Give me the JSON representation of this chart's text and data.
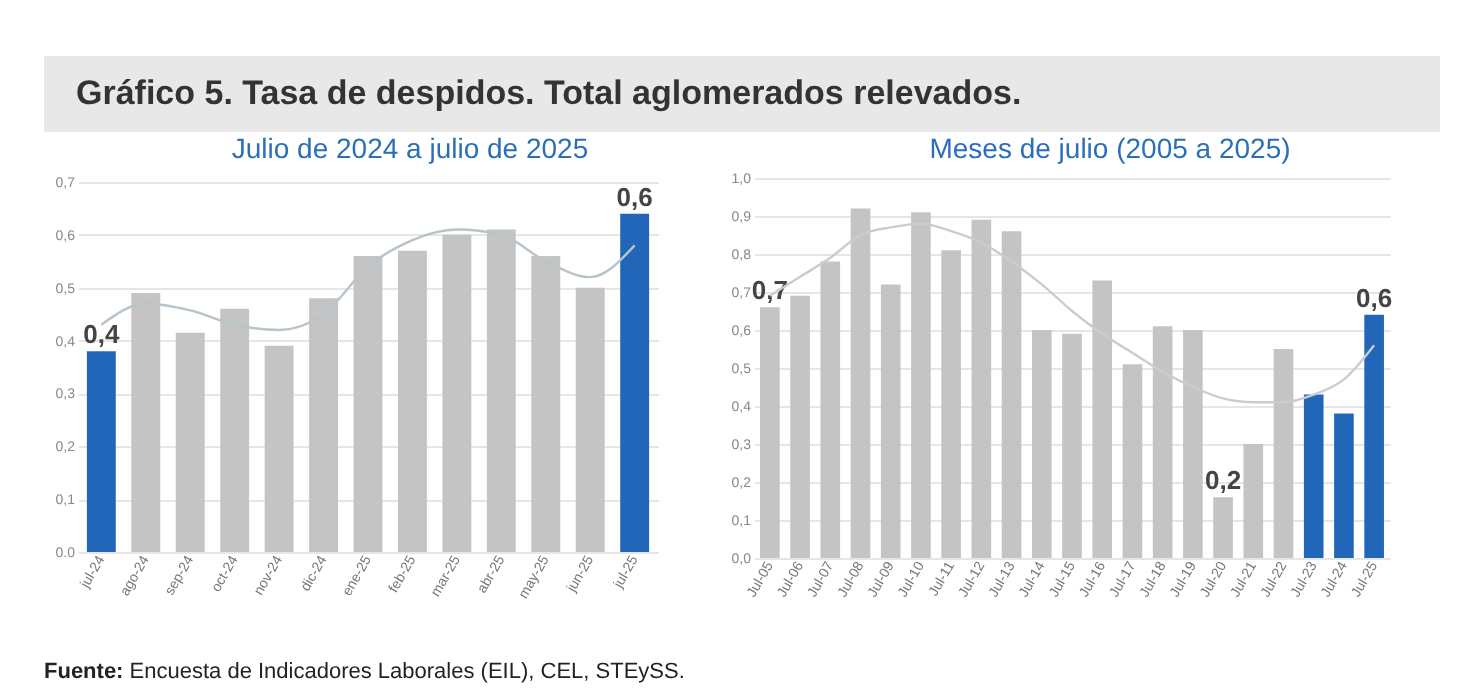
{
  "chart_data": [
    {
      "type": "bar",
      "title": "Julio de 2024 a julio de 2025",
      "annotations": [
        "Gráfico 5. Tasa de despidos. Total aglomerados relevados.",
        "Fuente: Encuesta de Indicadores Laborales (EIL), CEL, STEySS."
      ],
      "categories": [
        "jul-24",
        "ago-24",
        "sep-24",
        "oct-24",
        "nov-24",
        "dic-24",
        "ene-25",
        "feb-25",
        "mar-25",
        "abr-25",
        "may-25",
        "jun-25",
        "jul-25"
      ],
      "series": [
        {
          "colors": [
            "#2166b8",
            "#c4c4c4",
            "#c4c4c4",
            "#c4c4c4",
            "#c4c4c4",
            "#c4c4c4",
            "#c4c4c4",
            "#c4c4c4",
            "#c4c4c4",
            "#c4c4c4",
            "#c4c4c4",
            "#c4c4c4",
            "#2166b8"
          ],
          "values": [
            0.38,
            0.49,
            0.415,
            0.46,
            0.39,
            0.48,
            0.56,
            0.57,
            0.6,
            0.61,
            0.56,
            0.5,
            0.64
          ],
          "value_labels": [
            "0,4",
            null,
            null,
            null,
            null,
            null,
            null,
            null,
            null,
            null,
            null,
            null,
            "0,6"
          ]
        },
        {
          "type": "line",
          "color": "#b8c4cc",
          "values": [
            0.43,
            0.47,
            0.457,
            0.43,
            0.42,
            0.45,
            0.54,
            0.59,
            0.61,
            0.6,
            0.55,
            0.52,
            0.58
          ]
        }
      ],
      "ylim": [
        0,
        0.7
      ],
      "yticks": [
        {
          "value": 0,
          "label": "0.0"
        },
        {
          "value": 0.1,
          "label": "0,1"
        },
        {
          "value": 0.2,
          "label": "0,2"
        },
        {
          "value": 0.3,
          "label": "0,3"
        },
        {
          "value": 0.4,
          "label": "0,4"
        },
        {
          "value": 0.5,
          "label": "0,5"
        },
        {
          "value": 0.6,
          "label": "0,6"
        },
        {
          "value": 0.7,
          "label": "0,7"
        }
      ],
      "grid": "y"
    },
    {
      "type": "bar",
      "title": "Meses de julio (2005 a 2025)",
      "categories": [
        "Jul-05",
        "Jul-06",
        "Jul-07",
        "Jul-08",
        "Jul-09",
        "Jul-10",
        "Jul-11",
        "Jul-12",
        "Jul-13",
        "Jul-14",
        "Jul-15",
        "Jul-16",
        "Jul-17",
        "Jul-18",
        "Jul-19",
        "Jul-20",
        "Jul-21",
        "Jul-22",
        "Jul-23",
        "Jul-24",
        "Jul-25"
      ],
      "series": [
        {
          "colors": [
            "#c4c4c4",
            "#c4c4c4",
            "#c4c4c4",
            "#c4c4c4",
            "#c4c4c4",
            "#c4c4c4",
            "#c4c4c4",
            "#c4c4c4",
            "#c4c4c4",
            "#c4c4c4",
            "#c4c4c4",
            "#c4c4c4",
            "#c4c4c4",
            "#c4c4c4",
            "#c4c4c4",
            "#c4c4c4",
            "#c4c4c4",
            "#c4c4c4",
            "#2166b8",
            "#2166b8",
            "#2166b8"
          ],
          "values": [
            0.66,
            0.69,
            0.78,
            0.92,
            0.72,
            0.91,
            0.81,
            0.89,
            0.86,
            0.6,
            0.59,
            0.73,
            0.51,
            0.61,
            0.6,
            0.16,
            0.3,
            0.55,
            0.43,
            0.38,
            0.64
          ],
          "value_labels": [
            "0,7",
            null,
            null,
            null,
            null,
            null,
            null,
            null,
            null,
            null,
            null,
            null,
            null,
            null,
            null,
            "0,2",
            null,
            null,
            null,
            null,
            "0,6"
          ]
        },
        {
          "type": "line",
          "color": "#c8cdd2",
          "values": [
            0.69,
            0.74,
            0.79,
            0.85,
            0.87,
            0.88,
            0.86,
            0.83,
            0.78,
            0.72,
            0.65,
            0.59,
            0.54,
            0.49,
            0.45,
            0.42,
            0.41,
            0.41,
            0.43,
            0.47,
            0.56
          ]
        }
      ],
      "ylim": [
        0,
        1.0
      ],
      "yticks": [
        {
          "value": 0,
          "label": "0,0"
        },
        {
          "value": 0.1,
          "label": "0,1"
        },
        {
          "value": 0.2,
          "label": "0,2"
        },
        {
          "value": 0.3,
          "label": "0,3"
        },
        {
          "value": 0.4,
          "label": "0,4"
        },
        {
          "value": 0.5,
          "label": "0,5"
        },
        {
          "value": 0.6,
          "label": "0,6"
        },
        {
          "value": 0.7,
          "label": "0,7"
        },
        {
          "value": 0.8,
          "label": "0,8"
        },
        {
          "value": 0.9,
          "label": "0,9"
        },
        {
          "value": 1.0,
          "label": "1,0"
        }
      ],
      "grid": "y"
    }
  ]
}
